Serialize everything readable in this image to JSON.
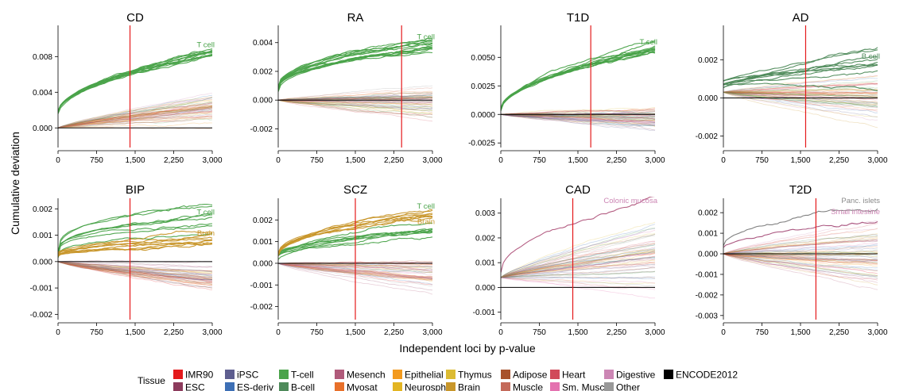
{
  "figure": {
    "ylabel": "Cumulative deviation",
    "xlabel": "Independent loci by p-value"
  },
  "legend": {
    "title": "Tissue",
    "entries": [
      {
        "label": "IMR90",
        "color": "#e41a1c"
      },
      {
        "label": "ESC",
        "color": "#8c3b5c"
      },
      {
        "label": "iPSC",
        "color": "#5e5e8f"
      },
      {
        "label": "ES-deriv",
        "color": "#3d6fb5"
      },
      {
        "label": "T-cell",
        "color": "#4aa34a"
      },
      {
        "label": "B-cell",
        "color": "#4e8a5a"
      },
      {
        "label": "Mesench",
        "color": "#b05a7a"
      },
      {
        "label": "Myosat",
        "color": "#e8702a"
      },
      {
        "label": "Epithelial",
        "color": "#f39a1e"
      },
      {
        "label": "Neurosph",
        "color": "#e3b522"
      },
      {
        "label": "Thymus",
        "color": "#dcbb33"
      },
      {
        "label": "Brain",
        "color": "#c8962a"
      },
      {
        "label": "Adipose",
        "color": "#a8522c"
      },
      {
        "label": "Muscle",
        "color": "#c46a5a"
      },
      {
        "label": "Heart",
        "color": "#d14a5a"
      },
      {
        "label": "Sm. Muscle",
        "color": "#e472b0"
      },
      {
        "label": "Digestive",
        "color": "#cc86b4"
      },
      {
        "label": "Other",
        "color": "#999999"
      },
      {
        "label": "ENCODE2012",
        "color": "#000000"
      }
    ]
  },
  "chart_data": [
    {
      "type": "line",
      "title": "CD",
      "x_range": [
        0,
        3000
      ],
      "ylim": [
        -0.0022,
        0.0115
      ],
      "xticks": [
        0,
        750,
        1500,
        2250,
        3000
      ],
      "xtick_labels": [
        "0",
        "750",
        "1,500",
        "2,250",
        "3,000"
      ],
      "yticks": [
        0,
        0.004,
        0.008
      ],
      "ytick_labels": [
        "0.000",
        "0.004",
        "0.008"
      ],
      "vline_x": 1400,
      "grid": false,
      "highlight": {
        "name": "T cell",
        "color": "#4aa34a",
        "count": 12,
        "start": 0.0018,
        "end": 0.0085,
        "spread": 0.0011,
        "curve": 0.55
      },
      "background": {
        "count": 55,
        "center": 0.0022,
        "spread": 0.0026,
        "start": 0.0
      },
      "annotations": [
        {
          "text": "T cell",
          "color": "#4aa34a"
        }
      ]
    },
    {
      "type": "line",
      "title": "RA",
      "x_range": [
        0,
        3000
      ],
      "ylim": [
        -0.0033,
        0.0052
      ],
      "xticks": [
        0,
        750,
        1500,
        2250,
        3000
      ],
      "xtick_labels": [
        "0",
        "750",
        "1,500",
        "2,250",
        "3,000"
      ],
      "yticks": [
        -0.002,
        0,
        0.002,
        0.004
      ],
      "ytick_labels": [
        "-0.002",
        "0.000",
        "0.002",
        "0.004"
      ],
      "vline_x": 2400,
      "grid": false,
      "highlight": {
        "name": "T cell",
        "color": "#4aa34a",
        "count": 14,
        "start": 0.0008,
        "end": 0.0039,
        "spread": 0.0009,
        "curve": 0.45
      },
      "background": {
        "count": 55,
        "center": -0.0002,
        "spread": 0.0015,
        "start": 0.0
      },
      "annotations": [
        {
          "text": "T cell",
          "color": "#4aa34a"
        }
      ]
    },
    {
      "type": "line",
      "title": "T1D",
      "x_range": [
        0,
        3000
      ],
      "ylim": [
        -0.0029,
        0.0078
      ],
      "xticks": [
        0,
        750,
        1500,
        2250,
        3000
      ],
      "xtick_labels": [
        "0",
        "750",
        "1,500",
        "2,250",
        "3,000"
      ],
      "yticks": [
        -0.0025,
        0,
        0.0025,
        0.005
      ],
      "ytick_labels": [
        "-0.0025",
        "0.0000",
        "0.0025",
        "0.0050"
      ],
      "vline_x": 1750,
      "grid": false,
      "highlight": {
        "name": "T cell",
        "color": "#4aa34a",
        "count": 13,
        "start": 0.0004,
        "end": 0.0057,
        "spread": 0.0007,
        "curve": 0.55
      },
      "background": {
        "count": 55,
        "center": -0.0003,
        "spread": 0.0018,
        "start": 0.0
      },
      "annotations": [
        {
          "text": "T cell",
          "color": "#4aa34a"
        }
      ]
    },
    {
      "type": "line",
      "title": "AD",
      "x_range": [
        0,
        3000
      ],
      "ylim": [
        -0.0026,
        0.0038
      ],
      "xticks": [
        0,
        750,
        1500,
        2250,
        3000
      ],
      "xtick_labels": [
        "0",
        "750",
        "1,500",
        "2,250",
        "3,000"
      ],
      "yticks": [
        -0.002,
        0,
        0.002
      ],
      "ytick_labels": [
        "-0.002",
        "0.000",
        "0.002"
      ],
      "vline_x": 1600,
      "grid": false,
      "highlight": {
        "name": "B cell",
        "color": "#4e8a5a",
        "count": 10,
        "start": 0.0007,
        "end": 0.0018,
        "spread": 0.0015,
        "curve": 0.8
      },
      "background": {
        "count": 55,
        "center": 0.0002,
        "spread": 0.0018,
        "start": 0.0003
      },
      "annotations": [
        {
          "text": "B cell",
          "color": "#4e8a5a"
        }
      ]
    },
    {
      "type": "line",
      "title": "BIP",
      "x_range": [
        0,
        3000
      ],
      "ylim": [
        -0.0022,
        0.0024
      ],
      "xticks": [
        0,
        750,
        1500,
        2250,
        3000
      ],
      "xtick_labels": [
        "0",
        "750",
        "1,500",
        "2,250",
        "3,000"
      ],
      "yticks": [
        -0.002,
        -0.001,
        0,
        0.001,
        0.002
      ],
      "ytick_labels": [
        "-0.002",
        "-0.001",
        "0.000",
        "0.001",
        "0.002"
      ],
      "vline_x": 1400,
      "grid": false,
      "highlight": {
        "name": "T cell",
        "color": "#4aa34a",
        "count": 8,
        "start": 0.0002,
        "end": 0.0016,
        "spread": 0.0008,
        "curve": 0.3
      },
      "highlight2": {
        "name": "Brain",
        "color": "#c8962a",
        "count": 9,
        "start": 0.0003,
        "end": 0.0008,
        "spread": 0.0007,
        "curve": 0.6
      },
      "background": {
        "count": 50,
        "center": -0.0006,
        "spread": 0.0011,
        "start": 0.0
      },
      "annotations": [
        {
          "text": "T cell",
          "color": "#4aa34a"
        },
        {
          "text": "Brain",
          "color": "#c8962a"
        }
      ]
    },
    {
      "type": "line",
      "title": "SCZ",
      "x_range": [
        0,
        3000
      ],
      "ylim": [
        -0.0026,
        0.003
      ],
      "xticks": [
        0,
        750,
        1500,
        2250,
        3000
      ],
      "xtick_labels": [
        "0",
        "750",
        "1,500",
        "2,250",
        "3,000"
      ],
      "yticks": [
        -0.002,
        -0.001,
        0,
        0.001,
        0.002
      ],
      "ytick_labels": [
        "-0.002",
        "-0.001",
        "0.000",
        "0.001",
        "0.002"
      ],
      "vline_x": 1500,
      "grid": false,
      "highlight": {
        "name": "T-cell",
        "color": "#4aa34a",
        "count": 8,
        "start": 0.0004,
        "end": 0.0016,
        "spread": 0.0008,
        "curve": 0.6
      },
      "highlight2": {
        "name": "Brain",
        "color": "#c8962a",
        "count": 8,
        "start": 0.0004,
        "end": 0.0023,
        "spread": 0.0007,
        "curve": 0.5
      },
      "background": {
        "count": 50,
        "center": -0.0005,
        "spread": 0.0012,
        "start": 0.0
      },
      "annotations": [
        {
          "text": "Brain",
          "color": "#c8962a"
        },
        {
          "text": "T cell",
          "color": "#4aa34a"
        }
      ]
    },
    {
      "type": "line",
      "title": "CAD",
      "x_range": [
        0,
        3000
      ],
      "ylim": [
        -0.0013,
        0.0036
      ],
      "xticks": [
        0,
        750,
        1500,
        2250,
        3000
      ],
      "xtick_labels": [
        "0",
        "750",
        "1,500",
        "2,250",
        "3,000"
      ],
      "yticks": [
        -0.001,
        0,
        0.001,
        0.002,
        0.003
      ],
      "ytick_labels": [
        "-0.001",
        "0.000",
        "0.001",
        "0.002",
        "0.003"
      ],
      "vline_x": 1400,
      "grid": false,
      "highlight": {
        "name": "Colonic mucosa",
        "color": "#b0557c",
        "count": 1,
        "start": 0.0006,
        "end": 0.0036,
        "spread": 0.0,
        "curve": 0.5
      },
      "background": {
        "count": 60,
        "center": 0.0012,
        "spread": 0.0022,
        "start": 0.0004
      },
      "annotations": [
        {
          "text": "Colonic mucosa",
          "color": "#cc86b4"
        }
      ]
    },
    {
      "type": "line",
      "title": "T2D",
      "x_range": [
        0,
        3000
      ],
      "ylim": [
        -0.0032,
        0.0027
      ],
      "xticks": [
        0,
        750,
        1500,
        2250,
        3000
      ],
      "xtick_labels": [
        "0",
        "750",
        "1,500",
        "2,250",
        "3,000"
      ],
      "yticks": [
        -0.003,
        -0.002,
        -0.001,
        0,
        0.001,
        0.002
      ],
      "ytick_labels": [
        "-0.003",
        "-0.002",
        "-0.001",
        "0.000",
        "0.001",
        "0.002"
      ],
      "vline_x": 1800,
      "grid": false,
      "highlight": {
        "name": "Panc. islets",
        "color": "#7a7a7a",
        "count": 1,
        "start": 0.0004,
        "end": 0.0024,
        "spread": 0.0,
        "curve": 0.5
      },
      "highlight2": {
        "name": "Small intestine",
        "color": "#a64f7a",
        "count": 1,
        "start": 0.0003,
        "end": 0.0017,
        "spread": 0.0,
        "curve": 0.6
      },
      "background": {
        "count": 60,
        "center": -0.0002,
        "spread": 0.0024,
        "start": 0.0
      },
      "annotations": [
        {
          "text": "Panc. islets",
          "color": "#8a8a8a"
        },
        {
          "text": "Small intestine",
          "color": "#cc86b4"
        }
      ]
    }
  ]
}
